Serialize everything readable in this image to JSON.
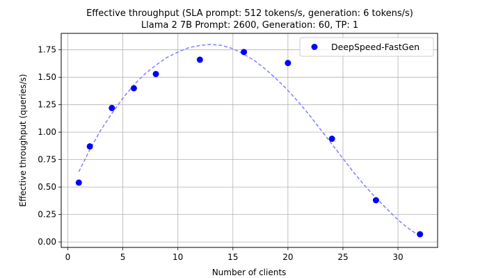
{
  "chart_data": {
    "type": "scatter",
    "title": "Effective throughput (SLA prompt: 512 tokens/s, generation: 6 tokens/s)",
    "subtitle": "Llama 2 7B Prompt: 2600, Generation: 60, TP: 1",
    "xlabel": "Number of clients",
    "ylabel": "Effective throughput (queries/s)",
    "xlim": [
      -0.6,
      33.6
    ],
    "ylim": [
      -0.05,
      1.9
    ],
    "xticks": [
      0,
      5,
      10,
      15,
      20,
      25,
      30
    ],
    "yticks": [
      0.0,
      0.25,
      0.5,
      0.75,
      1.0,
      1.25,
      1.5,
      1.75
    ],
    "xtick_labels": [
      "0",
      "5",
      "10",
      "15",
      "20",
      "25",
      "30"
    ],
    "ytick_labels": [
      "0.00",
      "0.25",
      "0.50",
      "0.75",
      "1.00",
      "1.25",
      "1.50",
      "1.75"
    ],
    "grid": true,
    "legend_position": "top-right",
    "series": [
      {
        "name": "DeepSpeed-FastGen",
        "kind": "scatter",
        "color": "#0000ff",
        "x": [
          1,
          2,
          4,
          6,
          8,
          12,
          16,
          20,
          24,
          28,
          32
        ],
        "y": [
          0.54,
          0.87,
          1.22,
          1.4,
          1.53,
          1.66,
          1.73,
          1.63,
          0.94,
          0.38,
          0.07
        ]
      },
      {
        "kind": "trend-line",
        "style": "dashed",
        "color": "#7f7fff",
        "x": [
          1,
          2,
          3,
          4,
          5,
          6,
          7,
          8,
          9,
          10,
          11,
          12,
          13,
          14,
          15,
          16,
          17,
          18,
          19,
          20,
          21,
          22,
          23,
          24,
          25,
          26,
          27,
          28,
          29,
          30,
          31,
          32
        ],
        "y": [
          0.64,
          0.84,
          1.02,
          1.17,
          1.31,
          1.43,
          1.53,
          1.61,
          1.68,
          1.73,
          1.77,
          1.79,
          1.8,
          1.79,
          1.76,
          1.71,
          1.65,
          1.57,
          1.48,
          1.38,
          1.27,
          1.15,
          1.02,
          0.89,
          0.76,
          0.63,
          0.51,
          0.4,
          0.3,
          0.2,
          0.12,
          0.05
        ]
      }
    ]
  }
}
